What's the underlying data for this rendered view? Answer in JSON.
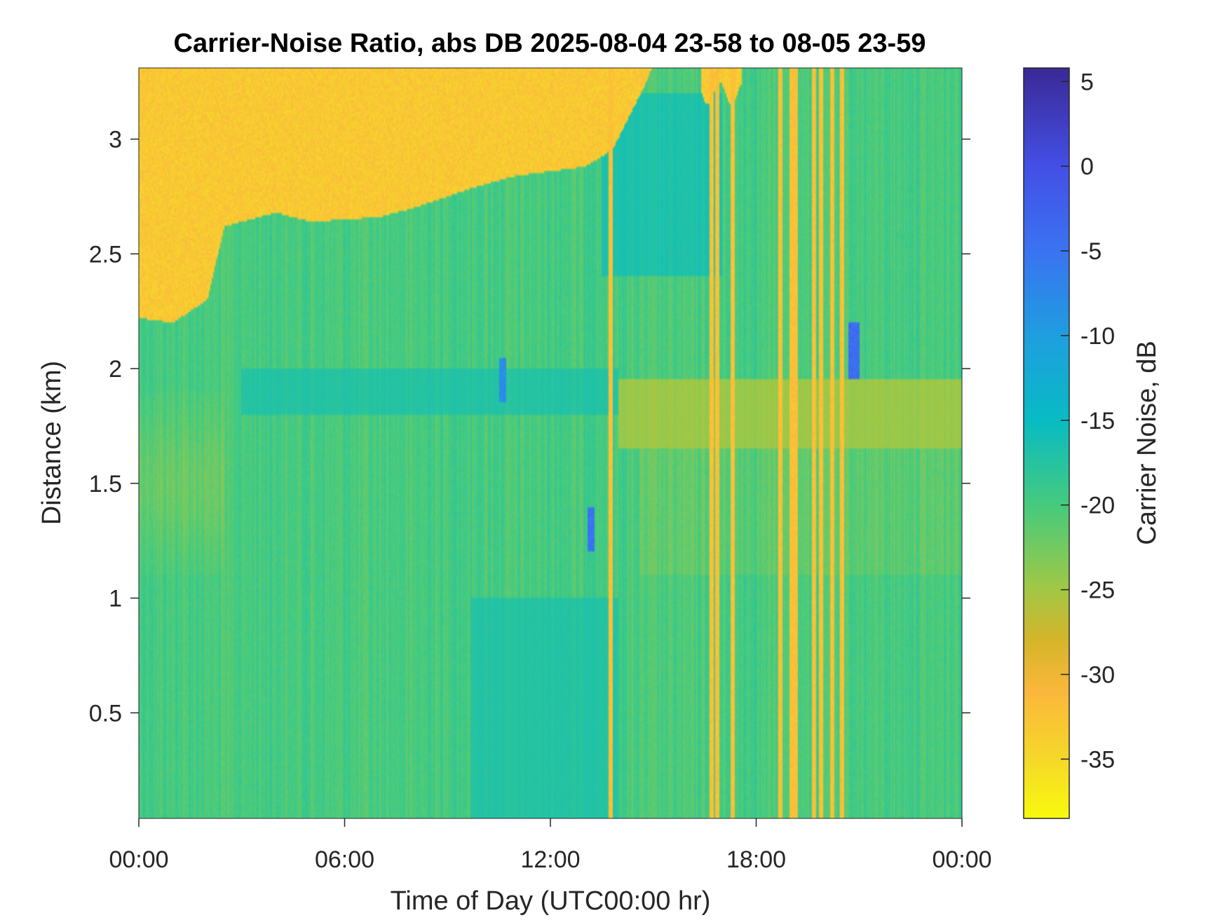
{
  "chart_data": {
    "type": "heatmap",
    "title": "Carrier-Noise Ratio, abs DB 2025-08-04 23-58 to 08-05 23-59",
    "xlabel": "Time of Day (UTC00:00 hr)",
    "ylabel": "Distance (km)",
    "colorbar_label": "Carrier Noise, dB",
    "xlim_hours": [
      0,
      24
    ],
    "ylim_km": [
      0.04,
      3.31
    ],
    "clim_db": [
      -38.5,
      5.8
    ],
    "x_ticks": [
      {
        "value": 0,
        "label": "00:00"
      },
      {
        "value": 6,
        "label": "06:00"
      },
      {
        "value": 12,
        "label": "12:00"
      },
      {
        "value": 18,
        "label": "18:00"
      },
      {
        "value": 24,
        "label": "00:00"
      }
    ],
    "y_ticks": [
      {
        "value": 0.5,
        "label": "0.5"
      },
      {
        "value": 1,
        "label": "1"
      },
      {
        "value": 1.5,
        "label": "1.5"
      },
      {
        "value": 2,
        "label": "2"
      },
      {
        "value": 2.5,
        "label": "2.5"
      },
      {
        "value": 3,
        "label": "3"
      }
    ],
    "colorbar_ticks": [
      {
        "value": 5,
        "label": "5"
      },
      {
        "value": 0,
        "label": "0"
      },
      {
        "value": -5,
        "label": "-5"
      },
      {
        "value": -10,
        "label": "-10"
      },
      {
        "value": -15,
        "label": "-15"
      },
      {
        "value": -20,
        "label": "-20"
      },
      {
        "value": -25,
        "label": "-25"
      },
      {
        "value": -30,
        "label": "-30"
      },
      {
        "value": -35,
        "label": "-35"
      }
    ],
    "colormap": "parula",
    "colormap_stops": [
      {
        "value": 5.8,
        "color": "#3b2a98"
      },
      {
        "value": 0,
        "color": "#4450e6"
      },
      {
        "value": -5,
        "color": "#3b74f2"
      },
      {
        "value": -10,
        "color": "#1f9fe0"
      },
      {
        "value": -15,
        "color": "#08bcc4"
      },
      {
        "value": -20,
        "color": "#46cb7e"
      },
      {
        "value": -25,
        "color": "#a3c845"
      },
      {
        "value": -28,
        "color": "#d6b52a"
      },
      {
        "value": -31,
        "color": "#fbb83c"
      },
      {
        "value": -35,
        "color": "#f6d92a"
      },
      {
        "value": -38.5,
        "color": "#f8fa0e"
      }
    ],
    "background_db": -20,
    "noise_floor_top_km": {
      "hours": [
        0,
        1,
        2,
        2.5,
        4,
        5,
        7,
        8,
        9,
        10,
        11,
        12,
        13,
        13.8,
        14.3,
        14.8,
        15.2,
        24
      ],
      "km": [
        2.22,
        2.2,
        2.3,
        2.62,
        2.68,
        2.64,
        2.66,
        2.7,
        2.75,
        2.8,
        2.84,
        2.86,
        2.88,
        2.95,
        3.1,
        3.25,
        3.4,
        3.4
      ],
      "db": -33
    },
    "noise_stripes_hours": [
      13.77,
      16.7,
      16.85,
      17.3,
      18.7,
      19.05,
      19.15,
      19.7,
      19.9,
      20.2,
      20.5
    ],
    "features": [
      {
        "kind": "cyan-band",
        "hours": [
          3,
          14
        ],
        "km": [
          1.8,
          2.0
        ],
        "db": -16
      },
      {
        "kind": "cyan-region",
        "hours": [
          9.7,
          14
        ],
        "km": [
          0.04,
          1.0
        ],
        "db": -16
      },
      {
        "kind": "cyan-region",
        "hours": [
          13.5,
          17
        ],
        "km": [
          2.4,
          3.2
        ],
        "db": -15
      },
      {
        "kind": "orange-band",
        "hours": [
          14,
          24
        ],
        "km": [
          1.65,
          1.95
        ],
        "db": -27
      },
      {
        "kind": "blue-spot",
        "hours": [
          13.1,
          13.3
        ],
        "km": [
          1.2,
          1.4
        ],
        "db": -5
      },
      {
        "kind": "blue-spot",
        "hours": [
          20.7,
          21.0
        ],
        "km": [
          1.95,
          2.2
        ],
        "db": -4
      },
      {
        "kind": "blue-spot",
        "hours": [
          10.5,
          10.7
        ],
        "km": [
          1.85,
          2.05
        ],
        "db": -8
      }
    ]
  }
}
